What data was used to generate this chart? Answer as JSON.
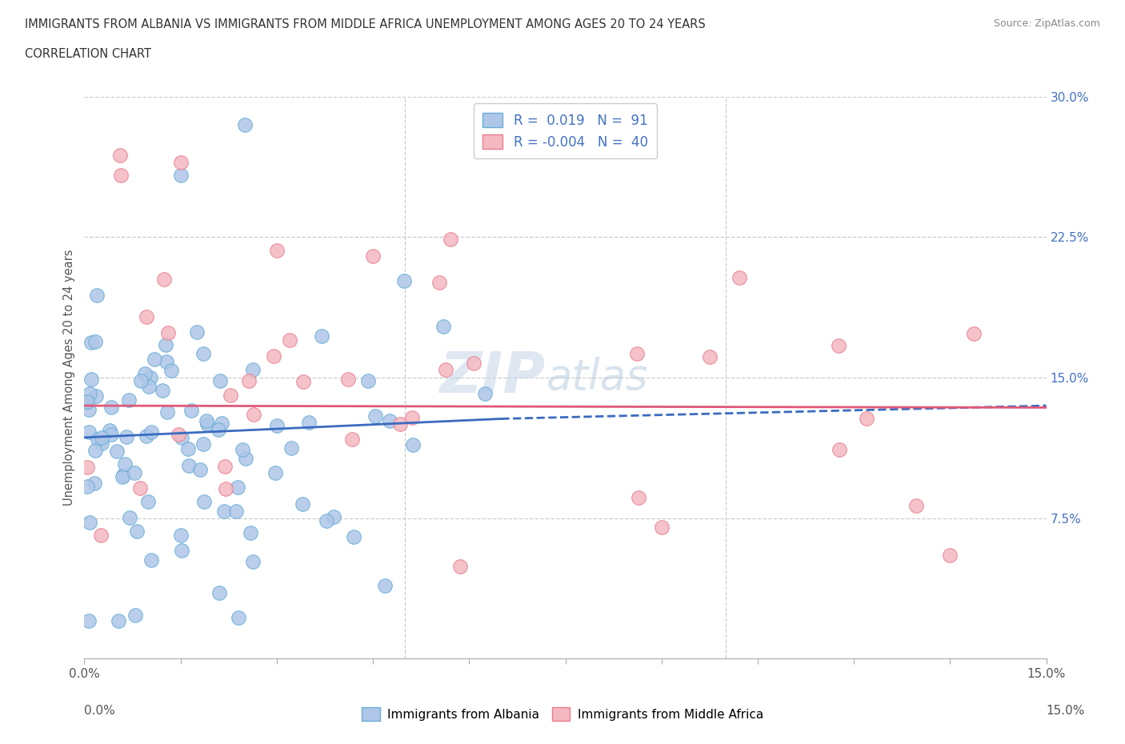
{
  "title_line1": "IMMIGRANTS FROM ALBANIA VS IMMIGRANTS FROM MIDDLE AFRICA UNEMPLOYMENT AMONG AGES 20 TO 24 YEARS",
  "title_line2": "CORRELATION CHART",
  "source": "Source: ZipAtlas.com",
  "ylabel": "Unemployment Among Ages 20 to 24 years",
  "xlim": [
    0.0,
    0.15
  ],
  "ylim": [
    0.0,
    0.3
  ],
  "ytick_labels_right": [
    "30.0%",
    "22.5%",
    "15.0%",
    "7.5%"
  ],
  "ytick_vals_right": [
    0.3,
    0.225,
    0.15,
    0.075
  ],
  "albania_color": "#aec6e8",
  "albania_edge": "#6aaed6",
  "middle_africa_color": "#f4b8c1",
  "middle_africa_edge": "#e87f8e",
  "r_albania": 0.019,
  "n_albania": 91,
  "r_middle_africa": -0.004,
  "n_middle_africa": 40,
  "trend_albania_color": "#3a6bbf",
  "trend_middle_africa_color": "#e05878",
  "watermark_zip": "ZIP",
  "watermark_atlas": "atlas",
  "legend_label_albania": "Immigrants from Albania",
  "legend_label_middle_africa": "Immigrants from Middle Africa",
  "trend_alb_x0": 0.0,
  "trend_alb_y0": 0.118,
  "trend_alb_x1": 0.065,
  "trend_alb_y1": 0.128,
  "trend_alb_x2": 0.15,
  "trend_alb_y2": 0.135,
  "trend_mid_y0": 0.135,
  "trend_mid_y1": 0.134
}
